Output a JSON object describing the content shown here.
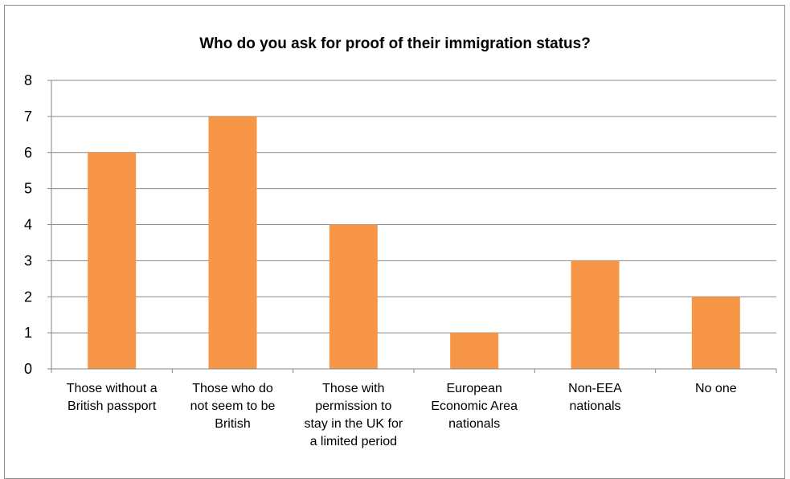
{
  "chart_data": {
    "type": "bar",
    "title": "Who do you ask for proof of their immigration status?",
    "xlabel": "",
    "ylabel": "",
    "categories": [
      [
        "Those without a",
        "British passport"
      ],
      [
        "Those who do",
        "not seem to be",
        "British"
      ],
      [
        "Those with",
        "permission to",
        "stay in the UK for",
        "a limited period"
      ],
      [
        "European",
        "Economic Area",
        "nationals"
      ],
      [
        "Non-EEA",
        "nationals"
      ],
      [
        "No one"
      ]
    ],
    "values": [
      6,
      7,
      4,
      1,
      3,
      2
    ],
    "ylim": [
      0,
      8
    ],
    "yticks": [
      0,
      1,
      2,
      3,
      4,
      5,
      6,
      7,
      8
    ],
    "grid": true,
    "legend": "none",
    "colors": {
      "bar": "#f79646",
      "grid": "#868686",
      "axis": "#868686"
    }
  }
}
